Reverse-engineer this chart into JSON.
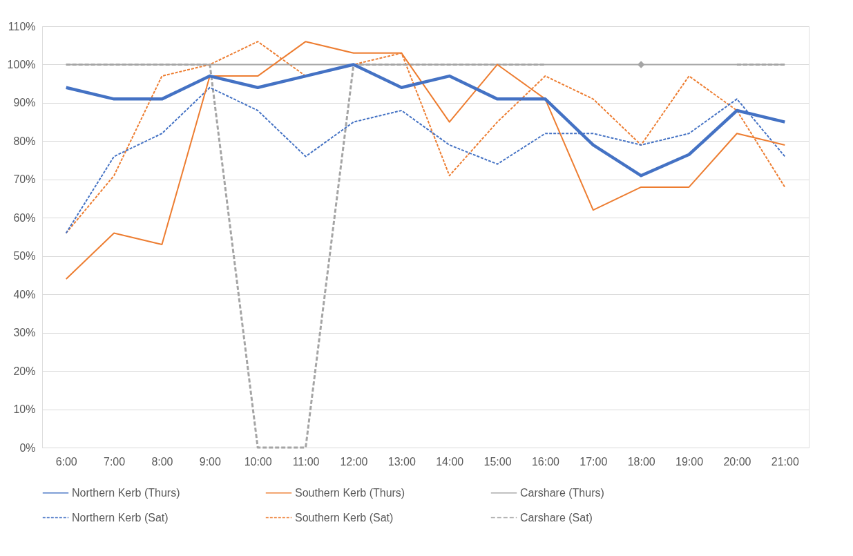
{
  "chart_data": {
    "type": "line",
    "categories": [
      "6:00",
      "7:00",
      "8:00",
      "9:00",
      "10:00",
      "11:00",
      "12:00",
      "13:00",
      "14:00",
      "15:00",
      "16:00",
      "17:00",
      "18:00",
      "19:00",
      "20:00",
      "21:00"
    ],
    "series": [
      {
        "name": "Northern Kerb (Thurs)",
        "color": "#4472c4",
        "line_style": "solid",
        "values": [
          94,
          91,
          91,
          97,
          94,
          97,
          100,
          94,
          97,
          91,
          91,
          79,
          71,
          76.5,
          88,
          85
        ]
      },
      {
        "name": "Southern Kerb (Thurs)",
        "color": "#ed7d31",
        "line_style": "solid",
        "values": [
          44,
          56,
          53,
          97,
          97,
          106,
          103,
          103,
          85,
          100,
          91,
          62,
          68,
          68,
          82,
          79
        ]
      },
      {
        "name": "Carshare (Thurs)",
        "color": "#a5a5a5",
        "line_style": "solid",
        "values": [
          100,
          100,
          100,
          100,
          100,
          100,
          100,
          100,
          100,
          100,
          100,
          100,
          100,
          100,
          100,
          100
        ]
      },
      {
        "name": "Northern Kerb (Sat)",
        "color": "#4472c4",
        "line_style": "dashed",
        "values": [
          56,
          76,
          82,
          94,
          88,
          76,
          85,
          88,
          79,
          74,
          82,
          82,
          79,
          82,
          91,
          76
        ]
      },
      {
        "name": "Southern Kerb (Sat)",
        "color": "#ed7d31",
        "line_style": "dashed",
        "values": [
          56,
          71,
          97,
          100,
          106,
          97,
          100,
          103,
          71,
          85,
          97,
          91,
          79,
          97,
          88,
          68
        ]
      },
      {
        "name": "Carshare (Sat)",
        "color": "#a5a5a5",
        "line_style": "dashed",
        "values": [
          100,
          100,
          100,
          100,
          0,
          0,
          100,
          100,
          100,
          100,
          100,
          null,
          100,
          null,
          100,
          100
        ]
      }
    ],
    "ylim": [
      0,
      110
    ],
    "yticks": [
      {
        "value": 0,
        "label": "0%"
      },
      {
        "value": 10,
        "label": "10%"
      },
      {
        "value": 20,
        "label": "20%"
      },
      {
        "value": 30,
        "label": "30%"
      },
      {
        "value": 40,
        "label": "40%"
      },
      {
        "value": 50,
        "label": "50%"
      },
      {
        "value": 60,
        "label": "60%"
      },
      {
        "value": 70,
        "label": "70%"
      },
      {
        "value": 80,
        "label": "80%"
      },
      {
        "value": 90,
        "label": "90%"
      },
      {
        "value": 100,
        "label": "100%"
      },
      {
        "value": 110,
        "label": "110%"
      }
    ],
    "grid": "y",
    "legend": "bottom",
    "marker": "none"
  }
}
